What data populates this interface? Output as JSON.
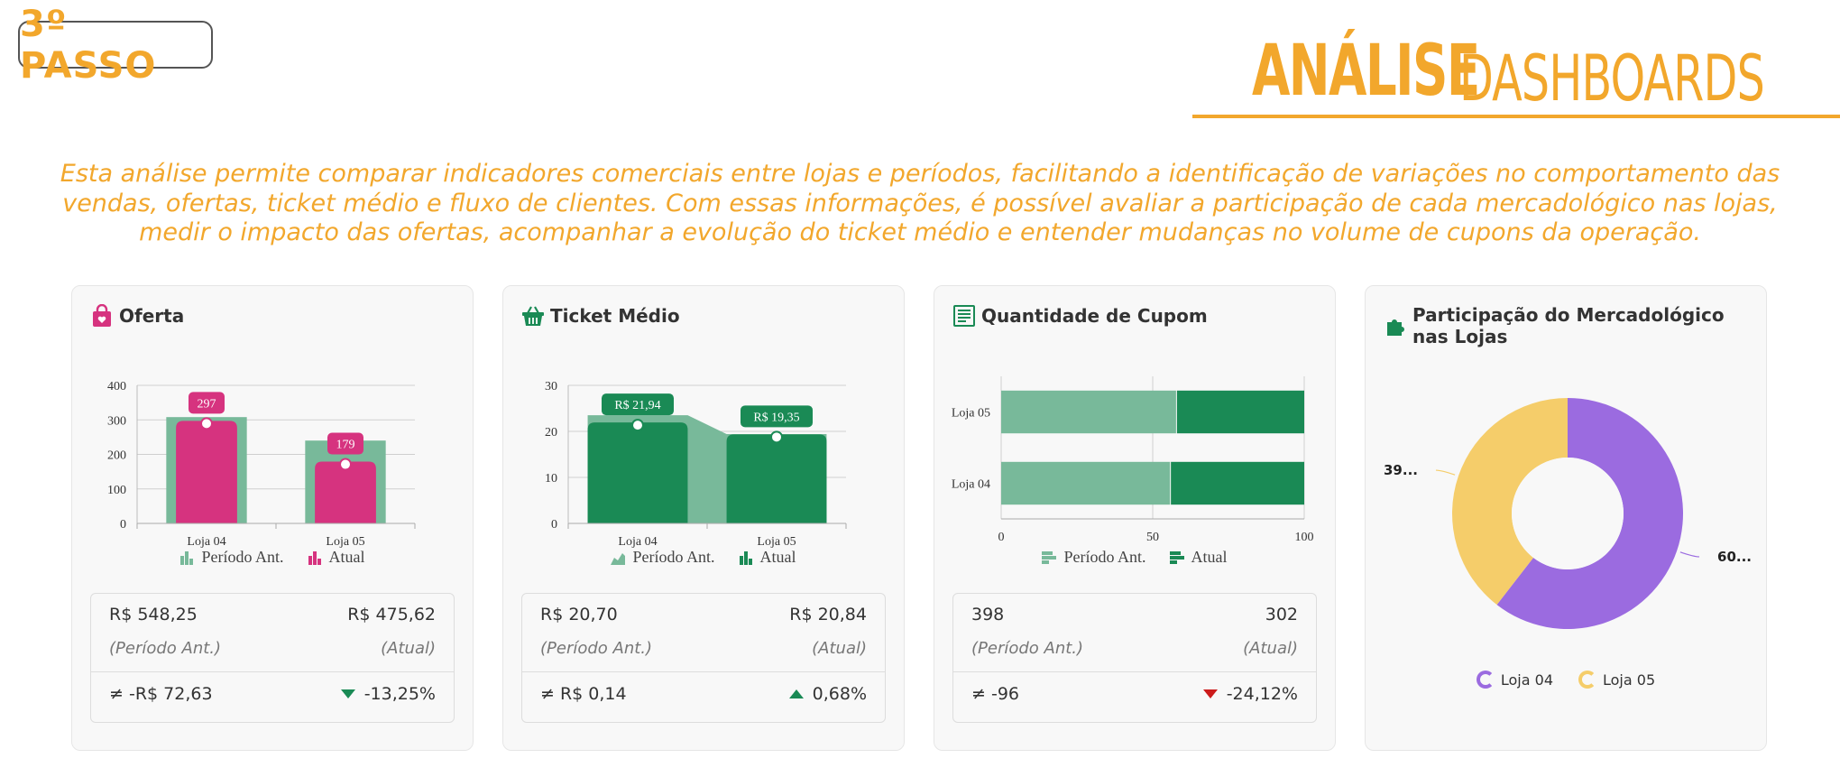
{
  "header": {
    "step_label": "3º PASSO",
    "title_bold": "ANÁLISE",
    "title_light": "DASHBOARDS",
    "intro_text": "Esta análise permite comparar indicadores comerciais entre lojas e períodos, facilitando a identificação de variações no comportamento das vendas, ofertas, ticket médio e fluxo de clientes. Com essas informações, é possível avaliar a participação de cada mercadológico nas lojas, medir o impacto das ofertas, acompanhar a evolução do ticket médio e entender mudanças no volume de cupons da operação.",
    "accent_color": "#f2a72c"
  },
  "cards": {
    "oferta": {
      "title": "Oferta",
      "icon": "shopping-bag-icon",
      "legend_prev": "Período Ant.",
      "legend_curr": "Atual",
      "summary": {
        "prev_value": "R$ 548,25",
        "curr_value": "R$ 475,62",
        "prev_label": "(Período Ant.)",
        "curr_label": "(Atual)",
        "diff": "≠ -R$ 72,63",
        "pct": "-13,25%",
        "trend": "down"
      }
    },
    "ticket": {
      "title": "Ticket Médio",
      "icon": "basket-icon",
      "legend_prev": "Período Ant.",
      "legend_curr": "Atual",
      "summary": {
        "prev_value": "R$ 20,70",
        "curr_value": "R$ 20,84",
        "prev_label": "(Período Ant.)",
        "curr_label": "(Atual)",
        "diff": "≠ R$ 0,14",
        "pct": "0,68%",
        "trend": "up"
      }
    },
    "cupom": {
      "title": "Quantidade de Cupom",
      "icon": "receipt-icon",
      "legend_prev": "Período Ant.",
      "legend_curr": "Atual",
      "summary": {
        "prev_value": "398",
        "curr_value": "302",
        "prev_label": "(Período Ant.)",
        "curr_label": "(Atual)",
        "diff": "≠ -96",
        "pct": "-24,12%",
        "trend": "down"
      }
    },
    "mercadologico": {
      "title": "Participação do Mercadológico nas Lojas",
      "icon": "puzzle-icon",
      "legend_a": "Loja 04",
      "legend_b": "Loja 05",
      "label_a": "60...",
      "label_b": "39..."
    }
  },
  "colors": {
    "pink": "#d6337f",
    "green_light": "#78b99a",
    "green_dark": "#1a8a55",
    "purple": "#9b6be0",
    "yellow": "#f5cd6a",
    "down_red": "#cc1b1b",
    "up_green": "#1a8a55"
  },
  "chart_data": [
    {
      "type": "bar",
      "title": "Oferta",
      "categories": [
        "Loja 04",
        "Loja 05"
      ],
      "series": [
        {
          "name": "Período Ant.",
          "values": [
            308,
            240
          ]
        },
        {
          "name": "Atual",
          "values": [
            297,
            179
          ],
          "labels": [
            "297",
            "179"
          ]
        }
      ],
      "ylim": [
        0,
        400
      ],
      "yticks": [
        0,
        100,
        200,
        300,
        400
      ],
      "grid": true
    },
    {
      "type": "bar",
      "title": "Ticket Médio",
      "categories": [
        "Loja 04",
        "Loja 05"
      ],
      "series": [
        {
          "name": "Período Ant.",
          "values": [
            23.5,
            19.4
          ],
          "style": "area"
        },
        {
          "name": "Atual",
          "values": [
            21.94,
            19.35
          ],
          "labels": [
            "R$ 21,94",
            "R$ 19,35"
          ]
        }
      ],
      "ylim": [
        0,
        30
      ],
      "yticks": [
        0,
        10,
        20,
        30
      ],
      "grid": true
    },
    {
      "type": "bar",
      "orientation": "horizontal",
      "stacked": true,
      "title": "Quantidade de Cupom",
      "categories": [
        "Loja 05",
        "Loja 04"
      ],
      "series": [
        {
          "name": "Período Ant.",
          "values": [
            58,
            56
          ]
        },
        {
          "name": "Atual",
          "values": [
            42,
            44
          ]
        }
      ],
      "xlim": [
        0,
        100
      ],
      "xticks": [
        0,
        50,
        100
      ],
      "grid": true
    },
    {
      "type": "pie",
      "donut": true,
      "title": "Participação do Mercadológico nas Lojas",
      "categories": [
        "Loja 04",
        "Loja 05"
      ],
      "values": [
        60.5,
        39.5
      ],
      "labels": [
        "60...",
        "39..."
      ]
    }
  ]
}
